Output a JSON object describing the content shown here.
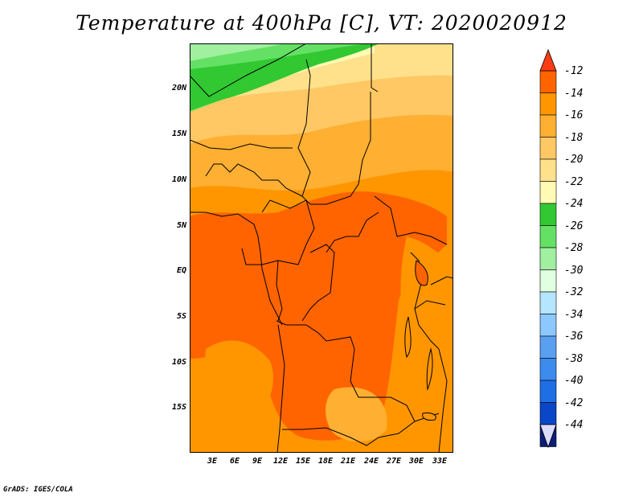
{
  "title": "Temperature at 400hPa [C], VT: 2020020912",
  "credit": "GrADS: IGES/COLA",
  "lat_labels": [
    "20N",
    "15N",
    "10N",
    "5N",
    "EQ",
    "5S",
    "10S",
    "15S"
  ],
  "lon_labels": [
    "3E",
    "6E",
    "9E",
    "12E",
    "15E",
    "18E",
    "21E",
    "24E",
    "27E",
    "30E",
    "33E"
  ],
  "colorbar": {
    "labels": [
      "-12",
      "-14",
      "-16",
      "-18",
      "-20",
      "-22",
      "-24",
      "-26",
      "-28",
      "-30",
      "-32",
      "-34",
      "-36",
      "-38",
      "-40",
      "-42",
      "-44"
    ],
    "colors": [
      "#ff6400",
      "#ff9600",
      "#ffaf32",
      "#ffc864",
      "#ffe18c",
      "#fffab4",
      "#32c832",
      "#64e164",
      "#a0f0a0",
      "#e1ffe1",
      "#b4e6ff",
      "#8cc8ff",
      "#5aa0f0",
      "#3c8cf0",
      "#1e6ee6",
      "#0a46c8",
      "#0a1e78"
    ],
    "top_arrow_color": "#ff3c14",
    "bottom_arrow_color": "#dcdcff"
  }
}
